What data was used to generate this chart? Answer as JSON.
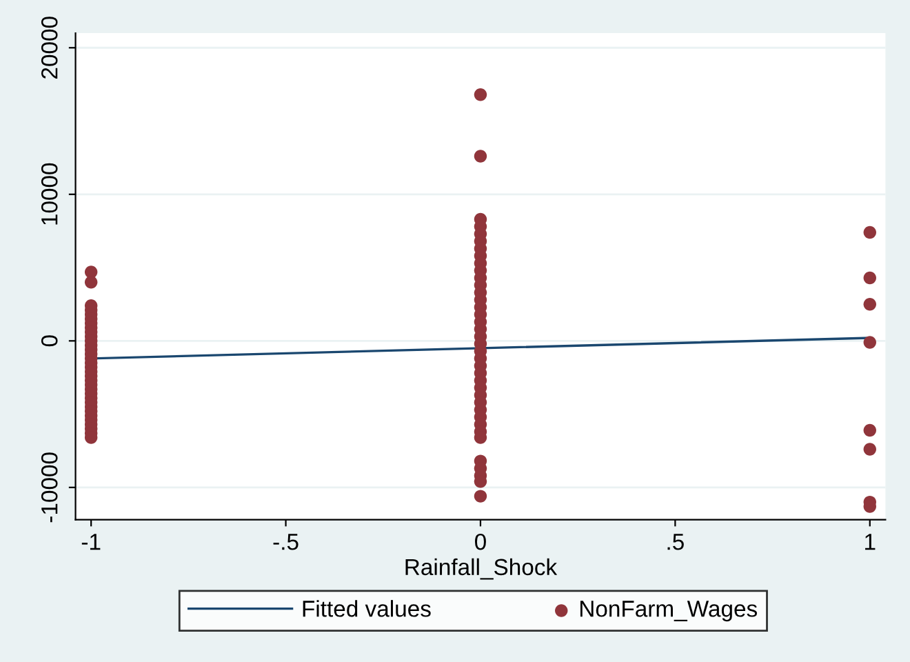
{
  "chart_data": {
    "type": "scatter",
    "xlabel": "Rainfall_Shock",
    "xlim": [
      -1.04,
      1.04
    ],
    "ylim": [
      -12200,
      21000
    ],
    "xticks": [
      {
        "value": -1,
        "label": "-1"
      },
      {
        "value": -0.5,
        "label": "-.5"
      },
      {
        "value": 0,
        "label": "0"
      },
      {
        "value": 0.5,
        "label": ".5"
      },
      {
        "value": 1,
        "label": "1"
      }
    ],
    "yticks": [
      -10000,
      0,
      10000,
      20000
    ],
    "grid": "y",
    "legend": "bottom",
    "series": [
      {
        "name": "Fitted values",
        "type": "line",
        "color": "#1a476f",
        "x": [
          -1,
          1
        ],
        "values": [
          -1200,
          200
        ]
      },
      {
        "name": "NonFarm_Wages",
        "marker": "circle",
        "color": "#90353b",
        "x": [
          -1,
          -1,
          -1,
          -1,
          -1,
          -1,
          -1,
          -1,
          -1,
          -1,
          -1,
          -1,
          -1,
          -1,
          -1,
          -1,
          -1,
          -1,
          -1,
          -1,
          -1,
          -1,
          -1,
          -1,
          -1,
          -1,
          -1,
          -1,
          -1,
          -1,
          -1,
          -1,
          -1,
          0,
          0,
          0,
          0,
          0,
          0,
          0,
          0,
          0,
          0,
          0,
          0,
          0,
          0,
          0,
          0,
          0,
          0,
          0,
          0,
          0,
          0,
          0,
          0,
          0,
          0,
          0,
          0,
          0,
          0,
          0,
          0,
          0,
          0,
          0,
          0,
          0,
          0,
          1,
          1,
          1,
          1,
          1,
          1,
          1,
          1
        ],
        "values": [
          4700,
          4000,
          2400,
          2100,
          1800,
          1500,
          1200,
          900,
          600,
          300,
          0,
          -300,
          -600,
          -900,
          -1200,
          -1500,
          -1800,
          -2100,
          -2400,
          -2700,
          -3000,
          -3300,
          -3600,
          -3900,
          -4200,
          -4500,
          -4800,
          -5100,
          -5400,
          -5700,
          -6000,
          -6300,
          -6600,
          16800,
          12600,
          8300,
          7800,
          7300,
          6800,
          6300,
          5800,
          5300,
          4800,
          4300,
          3800,
          3300,
          2800,
          2300,
          1800,
          1300,
          800,
          300,
          -200,
          -700,
          -1200,
          -1700,
          -2200,
          -2700,
          -3200,
          -3700,
          -4200,
          -4700,
          -5200,
          -5700,
          -6200,
          -6600,
          -8200,
          -8700,
          -9200,
          -9600,
          -10600,
          7400,
          4300,
          2500,
          -100,
          -6100,
          -7400,
          -11000,
          -11300
        ]
      }
    ]
  }
}
